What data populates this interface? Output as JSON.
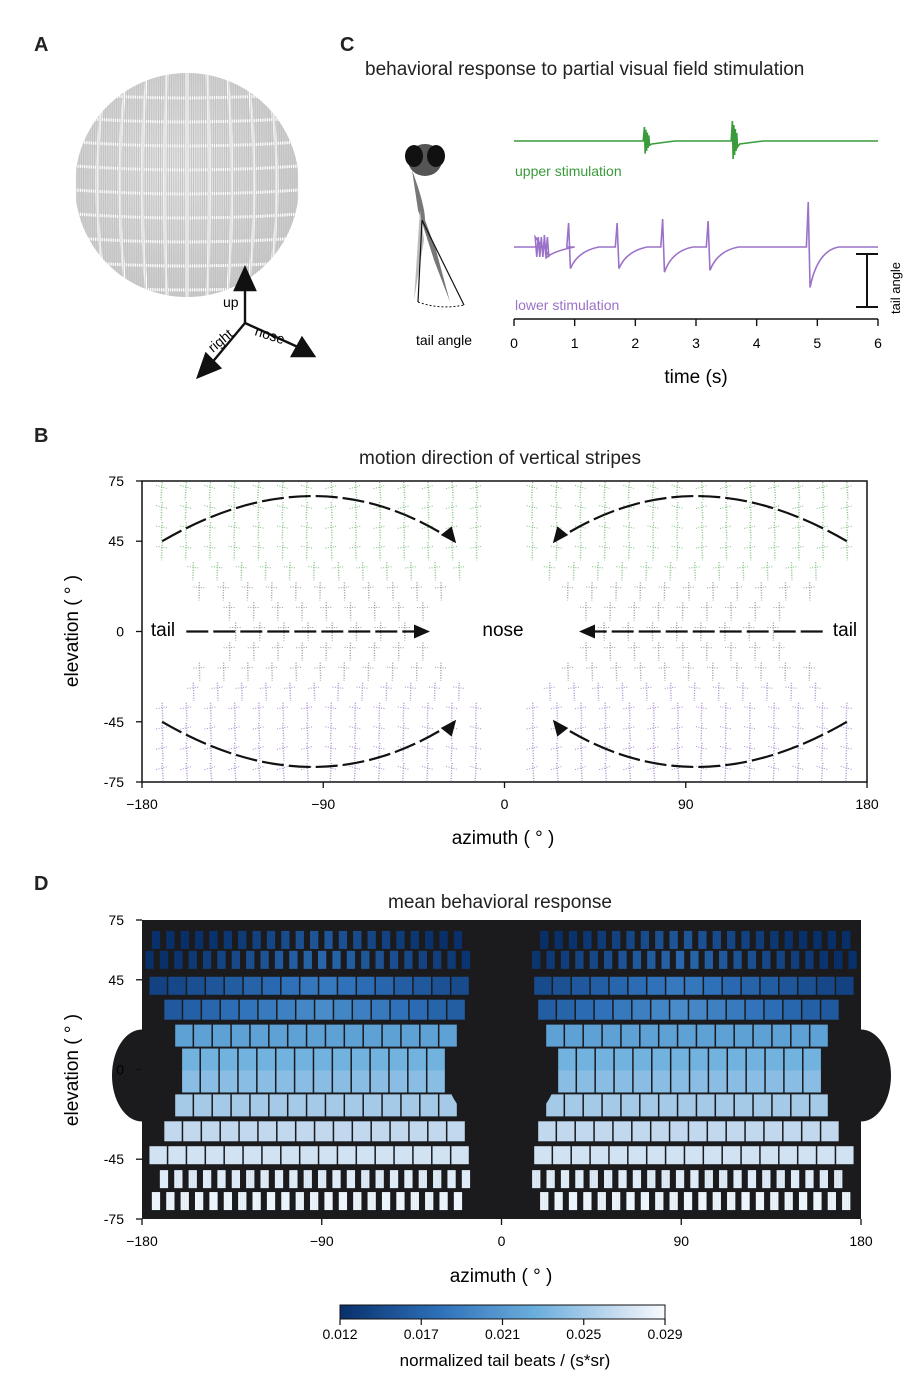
{
  "panels": {
    "a": "A",
    "b": "B",
    "c": "C",
    "d": "D"
  },
  "panel_a": {
    "axes_labels": {
      "up": "up",
      "nose": "nose",
      "right": "right"
    }
  },
  "panel_c": {
    "title": "behavioral response to partial visual field stimulation",
    "fish_label": "tail angle",
    "scale_label": "tail angle",
    "upper_label": "upper stimulation",
    "lower_label": "lower stimulation",
    "colors": {
      "upper": "#3a9b3a",
      "lower": "#9b72c8"
    }
  },
  "panel_b": {
    "title": "motion direction of vertical stripes",
    "annot": {
      "tail_left": "tail",
      "nose": "nose",
      "tail_right": "tail"
    }
  },
  "panel_d": {
    "title": "mean behavioral response",
    "colorbar_label": "normalized tail beats / (s*sr)",
    "colorbar_ticks": [
      "0.012",
      "0.017",
      "0.021",
      "0.025",
      "0.029"
    ]
  },
  "chart_data": [
    {
      "type": "line",
      "panel": "C",
      "xlabel": "time (s)",
      "xlim": [
        0,
        6
      ],
      "xticks": [
        "0",
        "1",
        "2",
        "3",
        "4",
        "5",
        "6"
      ],
      "series": [
        {
          "name": "upper stimulation",
          "events": [
            2.15,
            3.6
          ]
        },
        {
          "name": "lower stimulation",
          "events": [
            0.5,
            0.9,
            1.7,
            2.45,
            3.2,
            4.85
          ]
        }
      ]
    },
    {
      "type": "scatter",
      "panel": "B",
      "xlabel": "azimuth ( ° )",
      "ylabel": "elevation ( ° )",
      "xlim": [
        -180,
        180
      ],
      "ylim": [
        -75,
        75
      ],
      "xticks": [
        "−180",
        "−90",
        "0",
        "90",
        "180"
      ],
      "yticks": [
        "75",
        "45",
        "0",
        "-45",
        "-75"
      ]
    },
    {
      "type": "heatmap",
      "panel": "D",
      "xlabel": "azimuth ( ° )",
      "ylabel": "elevation ( ° )",
      "xlim": [
        -180,
        180
      ],
      "ylim": [
        -75,
        75
      ],
      "xticks": [
        "−180",
        "−90",
        "0",
        "90",
        "180"
      ],
      "yticks": [
        "75",
        "45",
        "0",
        "-45",
        "-75"
      ],
      "value_range": [
        0.012,
        0.029
      ]
    }
  ]
}
